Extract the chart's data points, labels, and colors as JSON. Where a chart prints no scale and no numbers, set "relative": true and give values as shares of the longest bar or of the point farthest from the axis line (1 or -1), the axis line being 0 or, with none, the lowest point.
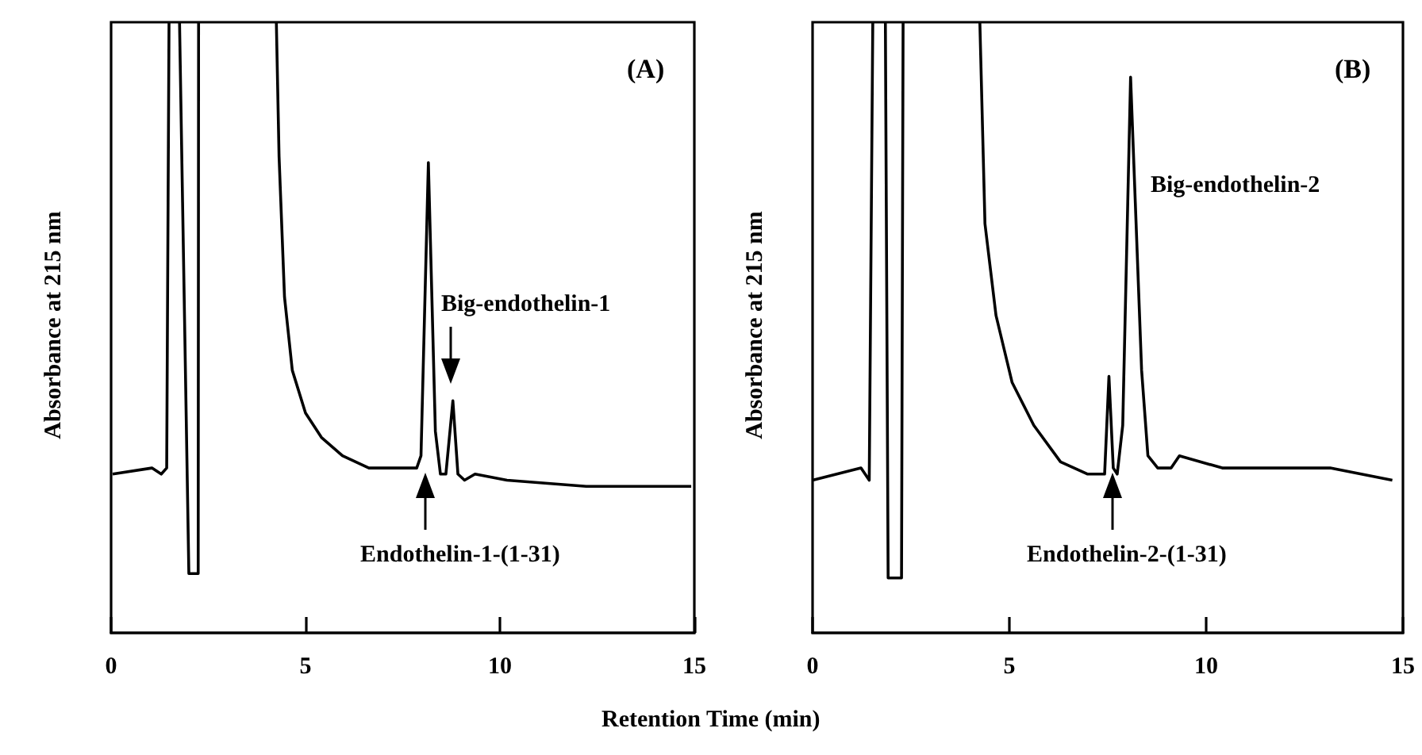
{
  "chart_data": [
    {
      "type": "line",
      "ylabel": "Absorbance at 215 nm",
      "xlabel": "Retention Time (min)",
      "relative": true,
      "xlim": [
        0,
        15
      ],
      "xticks": [
        0,
        5,
        10,
        15
      ],
      "tick_labels": "x",
      "grid": false,
      "annotations": [
        "(A)",
        "Big-endothelin-1",
        "Endothelin-1-(1-31)"
      ],
      "x": [
        0.04,
        1.05,
        1.29,
        1.43,
        1.49,
        1.62,
        1.76,
        2.0,
        2.24,
        2.25,
        3.2,
        4.25,
        4.32,
        4.46,
        4.66,
        5.0,
        5.41,
        5.95,
        6.63,
        7.45,
        7.86,
        7.97,
        8.16,
        8.34,
        8.47,
        8.61,
        8.79,
        8.92,
        9.09,
        9.36,
        10.18,
        12.22,
        14.92
      ],
      "series": [
        {
          "color": "#000000",
          "values": [
            0.26,
            0.27,
            0.26,
            0.27,
            1,
            null,
            1,
            0.097,
            0.097,
            1,
            null,
            1,
            0.78,
            0.55,
            0.43,
            0.36,
            0.32,
            0.29,
            0.27,
            0.27,
            0.27,
            0.29,
            0.77,
            0.33,
            0.26,
            0.26,
            0.38,
            0.26,
            0.25,
            0.26,
            0.25,
            0.24,
            0.24
          ]
        }
      ]
    },
    {
      "type": "line",
      "ylabel": "Absorbance at 215 nm",
      "relative": true,
      "xlim": [
        0,
        15
      ],
      "xticks": [
        0,
        5,
        10,
        15
      ],
      "tick_labels": "x",
      "grid": false,
      "annotations": [
        "(B)",
        "Big-endothelin-2",
        "Endothelin-2-(1-31)"
      ],
      "x": [
        0,
        1.23,
        1.44,
        1.53,
        1.7,
        1.85,
        1.92,
        2.26,
        2.3,
        3.2,
        4.25,
        4.38,
        4.66,
        5.07,
        5.62,
        6.3,
        6.99,
        7.42,
        7.53,
        7.64,
        7.74,
        7.88,
        8.08,
        8.36,
        8.52,
        8.77,
        9.11,
        9.32,
        10.41,
        13.15,
        14.73
      ],
      "series": [
        {
          "color": "#000000",
          "values": [
            0.25,
            0.27,
            0.25,
            1,
            null,
            1,
            0.09,
            0.09,
            1,
            null,
            1,
            0.67,
            0.52,
            0.41,
            0.34,
            0.28,
            0.26,
            0.26,
            0.42,
            0.27,
            0.26,
            0.34,
            0.91,
            0.43,
            0.29,
            0.27,
            0.27,
            0.29,
            0.27,
            0.27,
            0.25
          ]
        }
      ]
    }
  ]
}
